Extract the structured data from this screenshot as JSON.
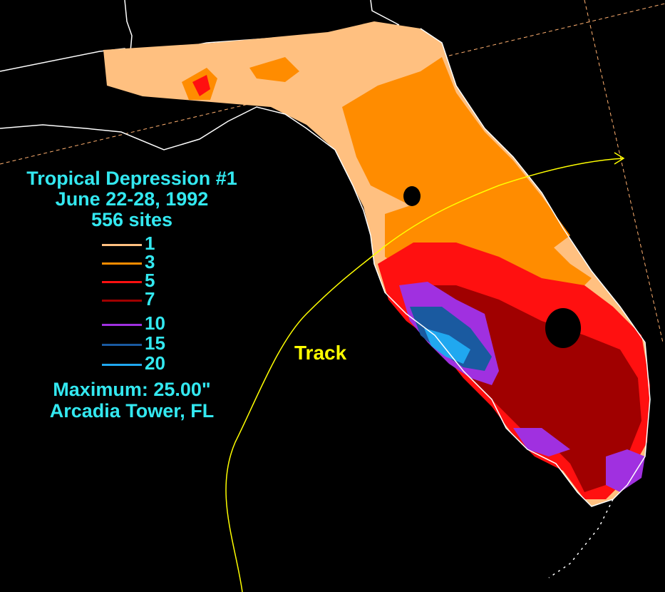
{
  "title": {
    "line1": "Tropical Depression #1",
    "line2": "June 22-28, 1992",
    "line3": "556 sites"
  },
  "legend": [
    {
      "label": "1",
      "color": "#ffc080"
    },
    {
      "label": "3",
      "color": "#ff8c00"
    },
    {
      "label": "5",
      "color": "#ff1010"
    },
    {
      "label": "7",
      "color": "#a00000"
    },
    {
      "label": "10",
      "color": "#a030e0"
    },
    {
      "label": "15",
      "color": "#1a5aa0"
    },
    {
      "label": "20",
      "color": "#20a8f0"
    }
  ],
  "maximum": {
    "line1": "Maximum:  25.00\"",
    "line2": "Arcadia Tower, FL"
  },
  "track_label": "Track",
  "colors": {
    "background": "#000000",
    "text": "#33e8f0",
    "track": "#ffff00",
    "border": "#ffffff",
    "grid": "#ffb070"
  }
}
